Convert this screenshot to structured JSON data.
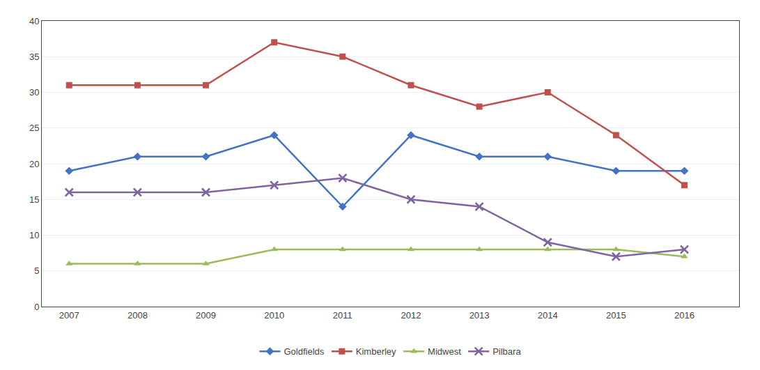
{
  "chart_data": {
    "type": "line",
    "x": [
      2007,
      2008,
      2009,
      2010,
      2011,
      2012,
      2013,
      2014,
      2015,
      2016
    ],
    "series": [
      {
        "name": "Goldfields",
        "color": "#4472C4",
        "marker": "diamond",
        "values": [
          19,
          21,
          21,
          24,
          14,
          24,
          21,
          21,
          19,
          19
        ]
      },
      {
        "name": "Kimberley",
        "color": "#C0504D",
        "marker": "square",
        "values": [
          31,
          31,
          31,
          37,
          35,
          31,
          28,
          30,
          24,
          17
        ]
      },
      {
        "name": "Midwest",
        "color": "#9BBB59",
        "marker": "triangle-up",
        "values": [
          6,
          6,
          6,
          8,
          8,
          8,
          8,
          8,
          8,
          7
        ]
      },
      {
        "name": "Pilbara",
        "color": "#8064A2",
        "marker": "x",
        "values": [
          16,
          16,
          16,
          17,
          18,
          15,
          14,
          9,
          7,
          8
        ]
      }
    ],
    "xlim": [
      2006.6,
      2016.8
    ],
    "xticks": [
      2007,
      2008,
      2009,
      2010,
      2011,
      2012,
      2013,
      2014,
      2015,
      2016
    ],
    "ylim": [
      0,
      40
    ],
    "yticks": [
      0,
      5,
      10,
      15,
      20,
      25,
      30,
      35,
      40
    ],
    "grid": true,
    "legend": "bottom"
  }
}
